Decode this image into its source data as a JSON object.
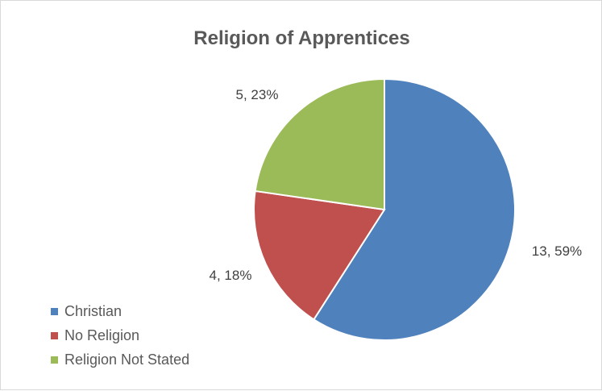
{
  "chart_data": {
    "type": "pie",
    "title": "Religion of Apprentices",
    "categories": [
      "Christian",
      "No Religion",
      "Religion Not Stated"
    ],
    "values": [
      13,
      4,
      5
    ],
    "percents": [
      59,
      18,
      23
    ],
    "data_labels": [
      "13, 59%",
      "4, 18%",
      "5, 23%"
    ],
    "colors": [
      "#4F81BD",
      "#C0504D",
      "#9BBB59"
    ],
    "legend_position": "left-bottom",
    "start_angle": "12 o'clock, clockwise"
  }
}
